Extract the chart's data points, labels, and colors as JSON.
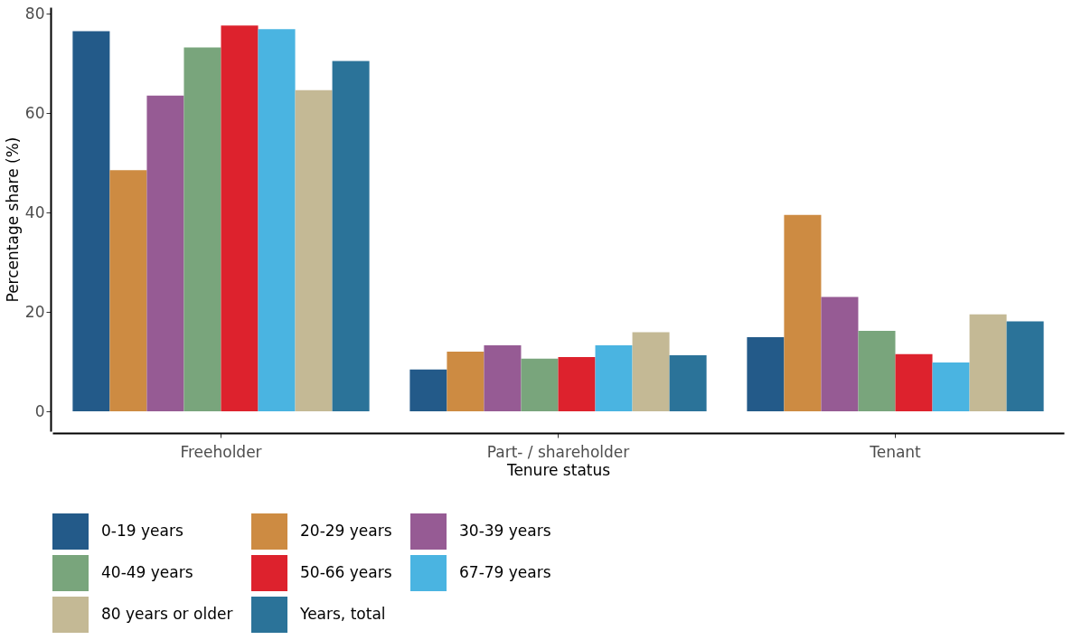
{
  "chart_data": {
    "type": "bar",
    "xlabel": "Tenure status",
    "ylabel": "Percentage share (%)",
    "categories": [
      "Freeholder",
      "Part- / shareholder",
      "Tenant"
    ],
    "series": [
      {
        "name": "0-19 years",
        "color": "#235a89",
        "values": [
          76.5,
          8.4,
          14.9
        ]
      },
      {
        "name": "20-29 years",
        "color": "#cd8b42",
        "values": [
          48.5,
          12.0,
          39.5
        ]
      },
      {
        "name": "30-39 years",
        "color": "#965b94",
        "values": [
          63.5,
          13.3,
          23.0
        ]
      },
      {
        "name": "40-49 years",
        "color": "#79a57c",
        "values": [
          73.2,
          10.6,
          16.2
        ]
      },
      {
        "name": "50-66 years",
        "color": "#dd222d",
        "values": [
          77.6,
          10.9,
          11.5
        ]
      },
      {
        "name": "67-79 years",
        "color": "#4ab4e1",
        "values": [
          76.9,
          13.3,
          9.8
        ]
      },
      {
        "name": "80 years or older",
        "color": "#c4b995",
        "values": [
          64.6,
          15.9,
          19.5
        ]
      },
      {
        "name": "Years, total",
        "color": "#2b7399",
        "values": [
          70.5,
          11.3,
          18.1
        ]
      }
    ],
    "ylim": [
      -4,
      81.3
    ],
    "yticks": [
      0,
      20,
      40,
      60,
      80
    ],
    "grid": false,
    "legend": "bottom"
  }
}
